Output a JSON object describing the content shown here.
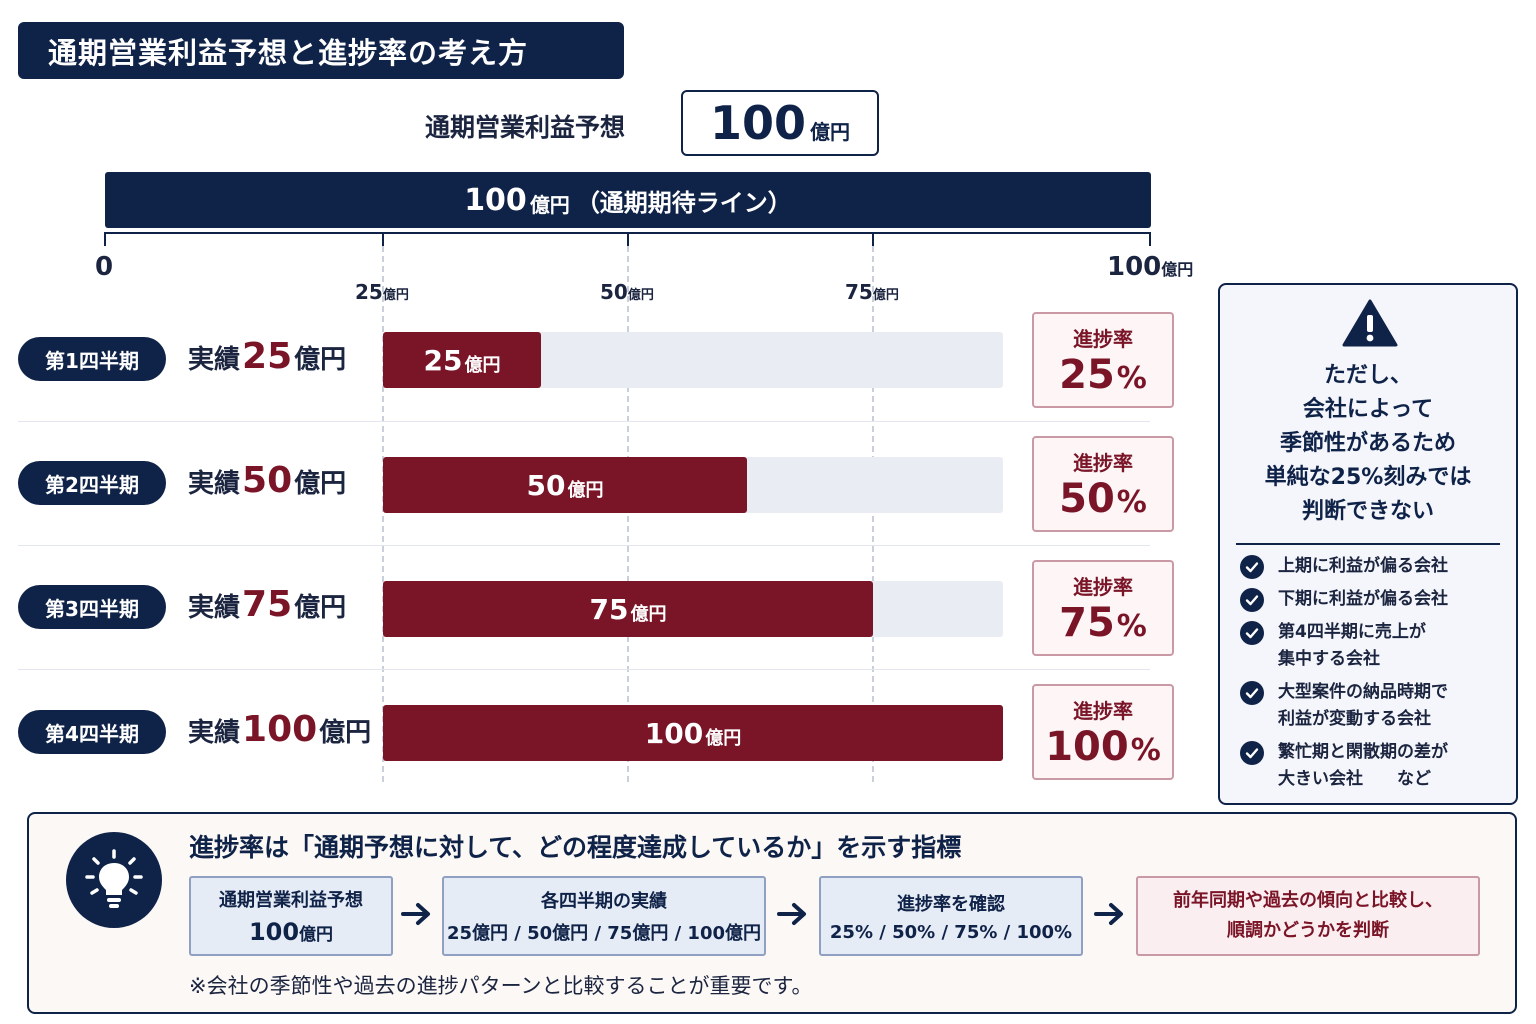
{
  "title": "通期営業利益予想と進捗率の考え方",
  "forecast": {
    "label": "通期営業利益予想",
    "value": "100",
    "unit": "億円"
  },
  "annual_bar": {
    "value": "100",
    "unit": "億円",
    "text": "（通期期待ライン）"
  },
  "axis": {
    "zero": "0",
    "ticks": [
      {
        "value": "25",
        "unit": "億円"
      },
      {
        "value": "50",
        "unit": "億円"
      },
      {
        "value": "75",
        "unit": "億円"
      }
    ],
    "end": {
      "value": "100",
      "unit": "億円"
    }
  },
  "quarters": [
    {
      "badge": "第1四半期",
      "actual_label": "実績",
      "actual_value": "25",
      "actual_unit": "億円",
      "bar_value": "25",
      "bar_unit": "億円",
      "rate_label": "進捗率",
      "rate_value": "25",
      "rate_unit": "%"
    },
    {
      "badge": "第2四半期",
      "actual_label": "実績",
      "actual_value": "50",
      "actual_unit": "億円",
      "bar_value": "50",
      "bar_unit": "億円",
      "rate_label": "進捗率",
      "rate_value": "50",
      "rate_unit": "%"
    },
    {
      "badge": "第3四半期",
      "actual_label": "実績",
      "actual_value": "75",
      "actual_unit": "億円",
      "bar_value": "75",
      "bar_unit": "億円",
      "rate_label": "進捗率",
      "rate_value": "75",
      "rate_unit": "%"
    },
    {
      "badge": "第4四半期",
      "actual_label": "実績",
      "actual_value": "100",
      "actual_unit": "億円",
      "bar_value": "100",
      "bar_unit": "億円",
      "rate_label": "進捗率",
      "rate_value": "100",
      "rate_unit": "%"
    }
  ],
  "note": {
    "icon": "warning-icon",
    "title_lines": [
      "ただし、",
      "会社によって",
      "季節性があるため",
      "単純な25%刻みでは",
      "判断できない"
    ],
    "items": [
      {
        "line1": "上期に利益が偏る会社",
        "line2": ""
      },
      {
        "line1": "下期に利益が偏る会社",
        "line2": ""
      },
      {
        "line1": "第4四半期に売上が",
        "line2": "集中する会社"
      },
      {
        "line1": "大型案件の納品時期で",
        "line2": "利益が変動する会社"
      },
      {
        "line1": "繁忙期と閑散期の差が",
        "line2": "大きい会社　　など"
      }
    ]
  },
  "bottom": {
    "icon": "lightbulb-icon",
    "title": "進捗率は「通期予想に対して、どの程度達成しているか」を示す指標",
    "flow": [
      {
        "title": "通期営業利益予想",
        "sub_value": "100",
        "sub_unit": "億円"
      },
      {
        "title": "各四半期の実績",
        "sub": "25億円 / 50億円 / 75億円 / 100億円"
      },
      {
        "title": "進捗率を確認",
        "sub": "25% / 50% / 75% / 100%"
      },
      {
        "line1": "前年同期や過去の傾向と比較し、",
        "line2": "順調かどうかを判断"
      }
    ],
    "note": "※会社の季節性や過去の進捗パターンと比較することが重要です。"
  },
  "colors": {
    "navy": "#0f2248",
    "crimson": "#7a1528",
    "track": "#e9ecf3"
  }
}
